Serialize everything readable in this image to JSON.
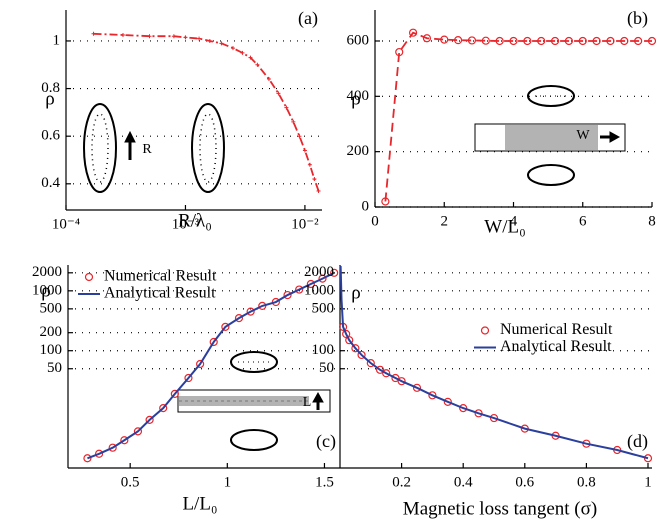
{
  "chart_data": [
    {
      "type": "line",
      "panel_label": "(a)",
      "xlabel": "R/λ₀",
      "ylabel": "ρ",
      "xscale": "log",
      "grid": "y",
      "xlim": [
        0.0001,
        0.0139
      ],
      "ylim": [
        0.29,
        1.13
      ],
      "xticks": [
        {
          "value": 0.0001,
          "label": "10⁻⁴"
        },
        {
          "value": 0.001,
          "label": "10⁻³"
        },
        {
          "value": 0.01,
          "label": "10⁻²"
        }
      ],
      "yticks": [
        0.4,
        0.6,
        0.8,
        1
      ],
      "annotations": [
        "R"
      ],
      "series": [
        {
          "color": "#e8262b",
          "line": "dashdot",
          "marker": "plus",
          "x": [
            0.00017,
            0.0003,
            0.0005,
            0.0008,
            0.001,
            0.0013,
            0.0016,
            0.002,
            0.0025,
            0.003,
            0.0035,
            0.004,
            0.005,
            0.006,
            0.007,
            0.008,
            0.009,
            0.01,
            0.011,
            0.012,
            0.013
          ],
          "values": [
            1.03,
            1.025,
            1.02,
            1.02,
            1.015,
            1.01,
            1.0,
            0.99,
            0.97,
            0.95,
            0.93,
            0.9,
            0.84,
            0.78,
            0.72,
            0.66,
            0.6,
            0.54,
            0.48,
            0.42,
            0.37
          ]
        }
      ]
    },
    {
      "type": "line",
      "panel_label": "(b)",
      "xlabel": "W/L₀",
      "ylabel": "ρ",
      "grid": "y",
      "xlim": [
        0,
        8
      ],
      "ylim": [
        0,
        712
      ],
      "xticks": [
        0,
        2,
        4,
        6,
        8
      ],
      "yticks": [
        0,
        200,
        400,
        600
      ],
      "annotations": [
        "W"
      ],
      "series": [
        {
          "color": "#e8262b",
          "line": "dashed",
          "marker": "circle",
          "x": [
            0.3,
            0.7,
            1.1,
            1.5,
            2,
            2.4,
            2.8,
            3.2,
            3.6,
            4,
            4.4,
            4.8,
            5.2,
            5.6,
            6,
            6.4,
            6.8,
            7.2,
            7.6,
            8
          ],
          "values": [
            20,
            560,
            630,
            610,
            605,
            603,
            602,
            601,
            600,
            600,
            600,
            600,
            600,
            600,
            600,
            600,
            600,
            600,
            600,
            600
          ]
        }
      ]
    },
    {
      "type": "line",
      "panel_label": "(c)",
      "xlabel": "L/L₀",
      "ylabel": "ρ",
      "yscale": "log",
      "grid": "y",
      "legend": "upper left",
      "xlim": [
        0.18,
        1.58
      ],
      "ylim": [
        1.1,
        2700
      ],
      "xticks": [
        0.5,
        1,
        1.5
      ],
      "yticks": [
        50,
        100,
        200,
        500,
        1000,
        2000
      ],
      "annotations": [
        "L"
      ],
      "series": [
        {
          "name": "Numerical Result",
          "color": "#e8262b",
          "line": "none",
          "marker": "circle",
          "x": [
            0.28,
            0.34,
            0.41,
            0.47,
            0.54,
            0.6,
            0.67,
            0.73,
            0.8,
            0.86,
            0.93,
            0.99,
            1.06,
            1.12,
            1.18,
            1.25,
            1.31,
            1.37,
            1.43,
            1.49,
            1.55
          ],
          "values": [
            1.6,
            1.9,
            2.4,
            3.2,
            4.5,
            7,
            11,
            19,
            35,
            60,
            140,
            250,
            350,
            450,
            560,
            650,
            850,
            1050,
            1300,
            1600,
            2000
          ]
        },
        {
          "name": "Analytical Result",
          "color": "#2b3f9e",
          "line": "solid",
          "marker": "none",
          "x": [
            0.28,
            0.34,
            0.41,
            0.47,
            0.54,
            0.6,
            0.67,
            0.73,
            0.8,
            0.86,
            0.93,
            0.99,
            1.06,
            1.12,
            1.18,
            1.25,
            1.31,
            1.37,
            1.43,
            1.49,
            1.55
          ],
          "values": [
            1.6,
            1.9,
            2.4,
            3.2,
            4.5,
            7,
            11,
            19,
            35,
            60,
            140,
            250,
            350,
            450,
            560,
            650,
            850,
            1050,
            1300,
            1600,
            2000
          ]
        }
      ]
    },
    {
      "type": "line",
      "panel_label": "(d)",
      "xlabel": "Magnetic loss tangent (σ)",
      "ylabel": "ρ",
      "yscale": "log",
      "grid": "y",
      "legend": "center right",
      "xlim": [
        0,
        1.013
      ],
      "ylim": [
        1.1,
        2700
      ],
      "xticks": [
        0.2,
        0.4,
        0.6,
        0.8,
        1
      ],
      "yticks": [
        50,
        100,
        500,
        1000,
        2000
      ],
      "series": [
        {
          "name": "Numerical Result",
          "color": "#e8262b",
          "line": "none",
          "marker": "circle",
          "x": [
            0.01,
            0.02,
            0.03,
            0.05,
            0.07,
            0.1,
            0.13,
            0.15,
            0.18,
            0.2,
            0.25,
            0.3,
            0.35,
            0.4,
            0.45,
            0.5,
            0.6,
            0.7,
            0.8,
            0.9,
            1.0
          ],
          "values": [
            250,
            190,
            150,
            110,
            85,
            62,
            48,
            42,
            35,
            31,
            24,
            18,
            14,
            11,
            9,
            7.5,
            5,
            3.8,
            2.8,
            2.2,
            1.6
          ]
        },
        {
          "name": "Analytical Result",
          "color": "#2b3f9e",
          "line": "solid",
          "marker": "none",
          "x": [
            0.002,
            0.005,
            0.01,
            0.02,
            0.03,
            0.05,
            0.07,
            0.1,
            0.13,
            0.15,
            0.18,
            0.2,
            0.25,
            0.3,
            0.35,
            0.4,
            0.45,
            0.5,
            0.6,
            0.7,
            0.8,
            0.9,
            1.0
          ],
          "values": [
            2600,
            700,
            250,
            190,
            150,
            110,
            85,
            62,
            48,
            42,
            35,
            31,
            24,
            18,
            14,
            11,
            9,
            7.5,
            5,
            3.8,
            2.8,
            2.2,
            1.6
          ]
        }
      ]
    }
  ]
}
